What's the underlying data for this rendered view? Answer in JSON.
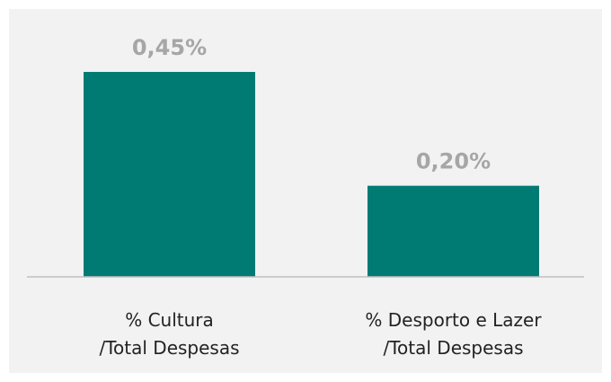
{
  "chart_data": {
    "type": "bar",
    "categories": [
      "% Cultura\n/Total Despesas",
      "% Desporto e Lazer\n/Total Despesas"
    ],
    "values": [
      0.45,
      0.2
    ],
    "value_labels": [
      "0,45%",
      "0,20%"
    ],
    "color": "#007b73"
  }
}
